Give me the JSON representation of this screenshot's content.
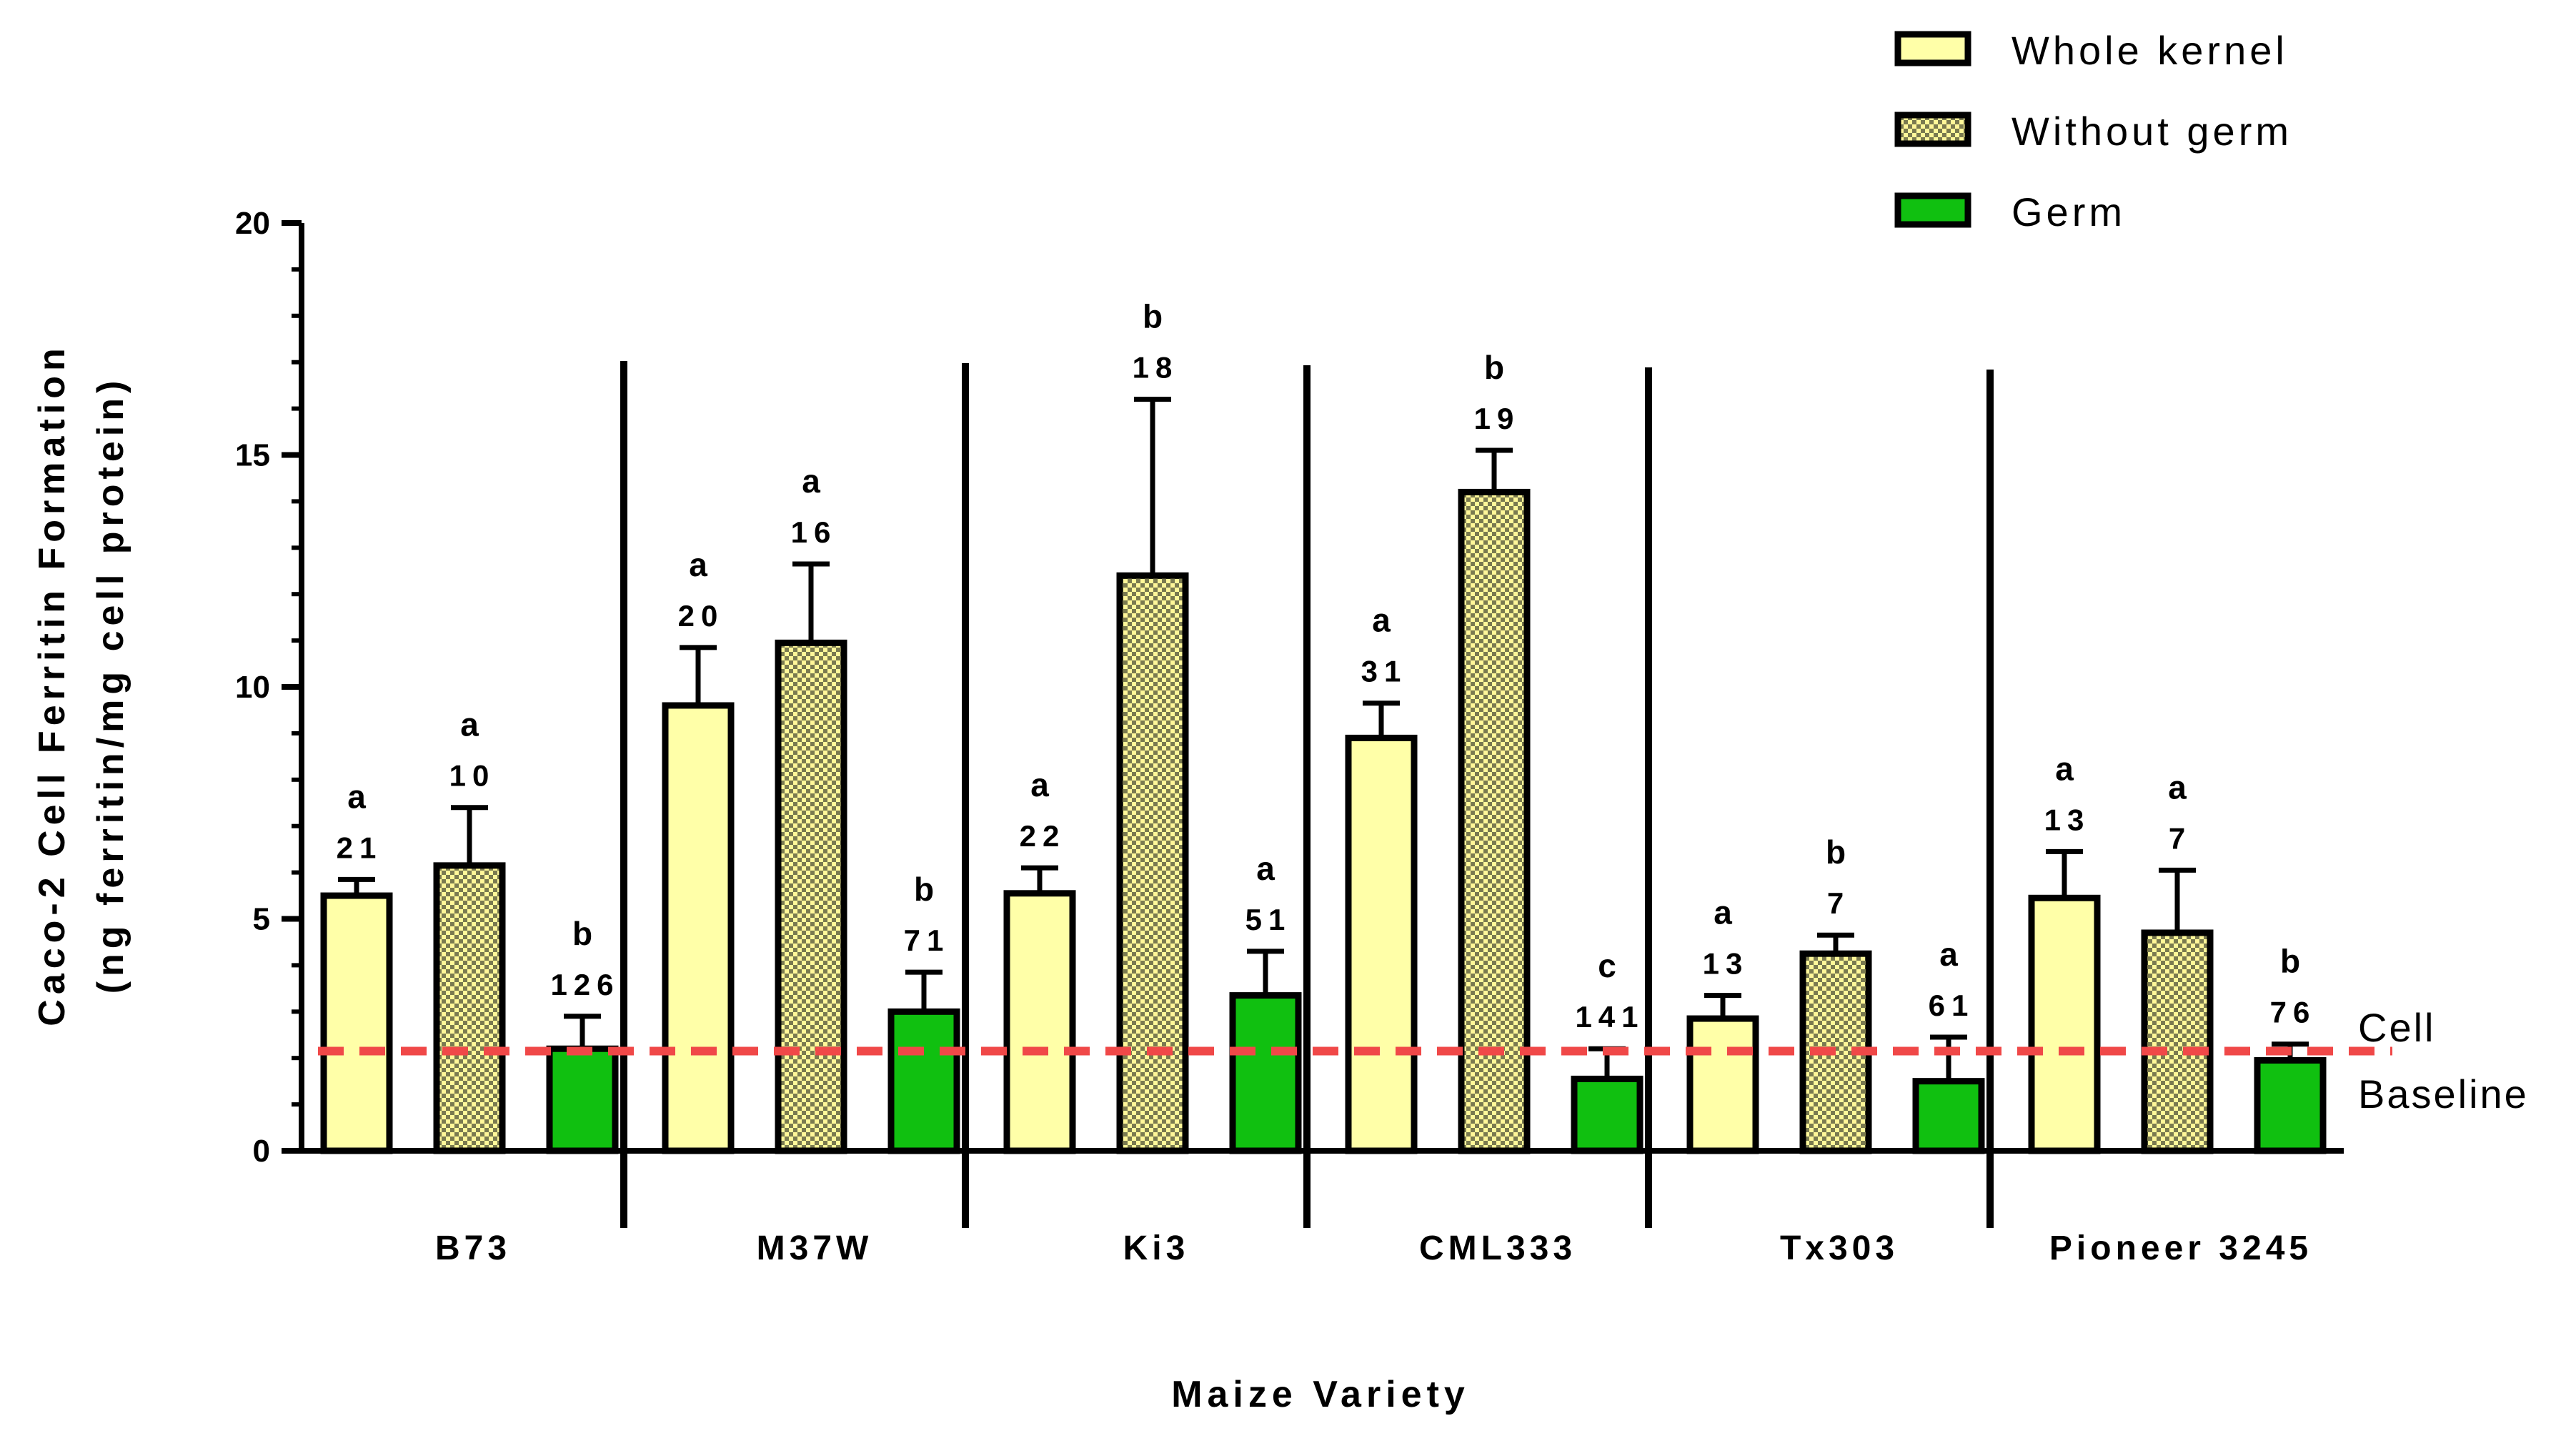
{
  "chart_data": {
    "type": "bar",
    "ylabel_line1": "Caco-2 Cell Ferritin  Formation",
    "ylabel_line2": "(ng ferritin/mg cell protein)",
    "xlabel": "Maize Variety",
    "ylim": [
      0,
      20
    ],
    "yticks": [
      "0",
      "5",
      "10",
      "15",
      "20"
    ],
    "legend_position": "top-right",
    "categories": [
      "B73",
      "M37W",
      "Ki3",
      "CML333",
      "Tx303",
      "Pioneer 3245"
    ],
    "series": [
      {
        "name": "Whole kernel",
        "color": "#ffffa8",
        "pattern": "solid",
        "values": [
          5.5,
          9.6,
          5.55,
          8.9,
          2.85,
          5.45
        ],
        "errors": [
          0.35,
          1.25,
          0.55,
          0.75,
          0.5,
          1.0
        ],
        "letters": [
          "a",
          "a",
          "a",
          "a",
          "a",
          "a"
        ],
        "n": [
          "21",
          "20",
          "22",
          "31",
          "13",
          "13"
        ]
      },
      {
        "name": "Without germ",
        "color": "#fff799",
        "pattern": "checker",
        "values": [
          6.15,
          10.95,
          12.4,
          14.2,
          4.25,
          4.7
        ],
        "errors": [
          1.25,
          1.7,
          3.8,
          0.9,
          0.4,
          1.35
        ],
        "letters": [
          "a",
          "a",
          "b",
          "b",
          "b",
          "a"
        ],
        "n": [
          "10",
          "16",
          "18",
          "19",
          "7",
          "7"
        ]
      },
      {
        "name": "Germ",
        "color": "#10c010",
        "pattern": "solid",
        "values": [
          2.2,
          3.0,
          3.35,
          1.55,
          1.5,
          1.95
        ],
        "errors": [
          0.7,
          0.85,
          0.95,
          0.65,
          0.95,
          0.35
        ],
        "letters": [
          "b",
          "b",
          "a",
          "c",
          "a",
          "b"
        ],
        "n": [
          "126",
          "71",
          "51",
          "141",
          "61",
          "76"
        ]
      }
    ],
    "reference_line": {
      "value": 2.15,
      "label_line1": "Cell",
      "label_line2": "Baseline",
      "color": "#f04848"
    }
  }
}
